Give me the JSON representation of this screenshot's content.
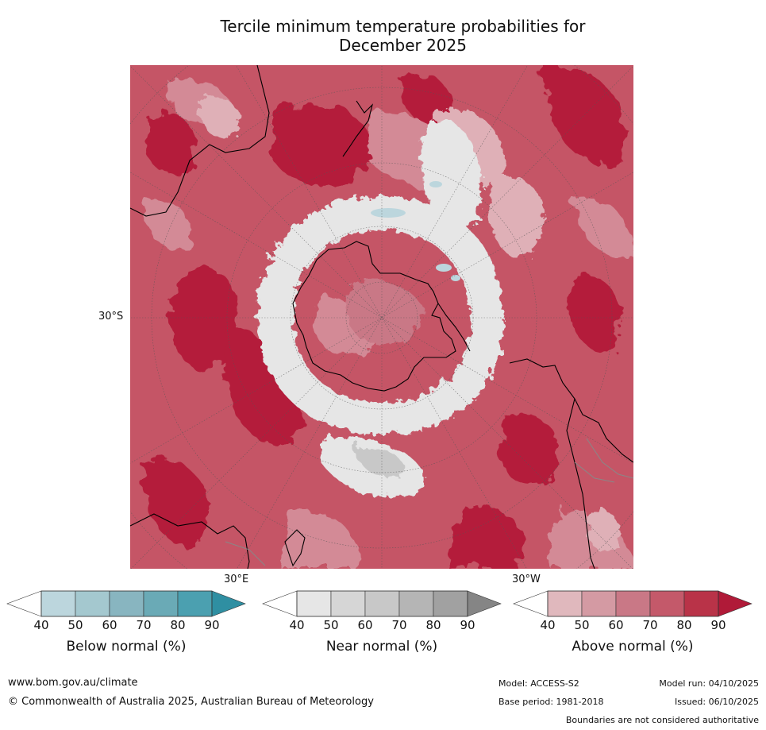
{
  "title": {
    "line1": "Tercile minimum temperature probabilities for",
    "line2": "December 2025"
  },
  "map": {
    "projection": "south-polar-stereographic",
    "lat_label": "30°S",
    "lon_label_east": "30°E",
    "lon_label_west": "30°W",
    "colors": {
      "above_light": "#dfb0b7",
      "above_mid": "#d38a96",
      "above_strong": "#c55566",
      "above_very": "#b41e3a",
      "near": "#e6e6e6",
      "near_dark": "#c8c8c8",
      "below": "#bcd6dd",
      "coast": "#000000",
      "border": "#888888"
    }
  },
  "colorbars": [
    {
      "name": "below",
      "label": "Below normal (%)",
      "ticks": [
        "40",
        "50",
        "60",
        "70",
        "80",
        "90"
      ],
      "colors": [
        "#ffffff",
        "#bcd6dd",
        "#a4c8cf",
        "#88b5c0",
        "#6aaab6",
        "#4ba0b0",
        "#2f8fa2"
      ]
    },
    {
      "name": "near",
      "label": "Near normal (%)",
      "ticks": [
        "40",
        "50",
        "60",
        "70",
        "80",
        "90"
      ],
      "colors": [
        "#ffffff",
        "#e6e6e6",
        "#d6d6d6",
        "#c8c8c8",
        "#b5b5b5",
        "#a1a1a1",
        "#858585"
      ]
    },
    {
      "name": "above",
      "label": "Above normal (%)",
      "ticks": [
        "40",
        "50",
        "60",
        "70",
        "80",
        "90"
      ],
      "colors": [
        "#ffffff",
        "#e0b8bd",
        "#d49aa3",
        "#c97886",
        "#c4596a",
        "#b93348",
        "#b01a38"
      ]
    }
  ],
  "footer": {
    "website": "www.bom.gov.au/climate",
    "copyright": "© Commonwealth of Australia 2025, Australian Bureau of Meteorology",
    "model": "Model: ACCESS-S2",
    "base_period": "Base period: 1981-2018",
    "model_run": "Model run: 04/10/2025",
    "issued": "Issued: 06/10/2025",
    "disclaimer": "Boundaries are not considered authoritative"
  }
}
